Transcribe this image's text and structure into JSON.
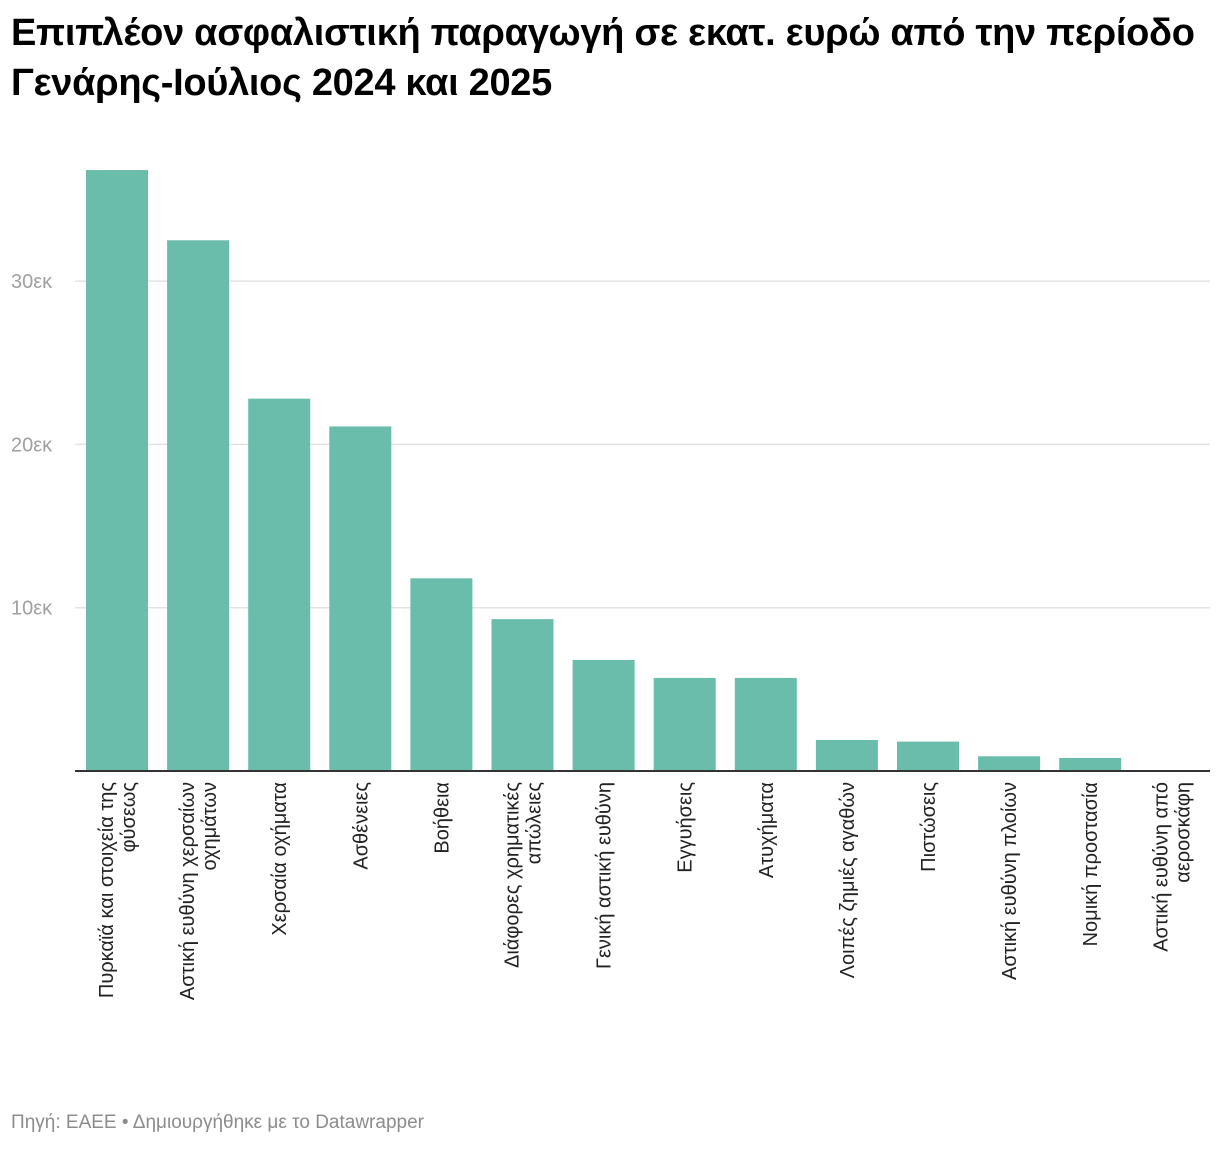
{
  "footer": {
    "source": "Πηγή: ΕΑΕΕ",
    "separator": "•",
    "credit": "Δημιουργήθηκε με το Datawrapper"
  },
  "colors": {
    "bar": "#6abcab",
    "grid": "#e3e3e3",
    "axis": "#333333",
    "tick_label": "#a0a0a0"
  },
  "chart_data": {
    "type": "bar",
    "title": "Επιπλέον ασφαλιστική παραγωγή σε εκατ. ευρώ από την περίοδο Γενάρης-Ιούλιος 2024 και 2025",
    "xlabel": "",
    "ylabel": "",
    "ylim": [
      0,
      38000
    ],
    "yticks": [
      10000,
      20000,
      30000
    ],
    "ytick_labels": [
      "10εκ",
      "20εκ",
      "30εκ"
    ],
    "grid": true,
    "categories": [
      [
        "Πυρκαϊά και στοιχεία της",
        "φύσεως"
      ],
      [
        "Αστική ευθύνη χερσαίων",
        "οχημάτων"
      ],
      [
        "Χερσαία οχήματα"
      ],
      [
        "Ασθένειες"
      ],
      [
        "Βοήθεια"
      ],
      [
        "Διάφορες χρηματικές",
        "απώλειες"
      ],
      [
        "Γενική αστική ευθύνη"
      ],
      [
        "Εγγυήσεις"
      ],
      [
        "Ατυχήματα"
      ],
      [
        "Λοιπές ζημιές αγαθών"
      ],
      [
        "Πιστώσεις"
      ],
      [
        "Αστική ευθύνη πλοίων"
      ],
      [
        "Νομική προστασία"
      ],
      [
        "Αστική ευθύνη από",
        "αεροσκάφη"
      ]
    ],
    "values": [
      36800,
      32500,
      22800,
      21100,
      11800,
      9300,
      6800,
      5700,
      5700,
      1900,
      1800,
      900,
      800,
      30
    ]
  }
}
